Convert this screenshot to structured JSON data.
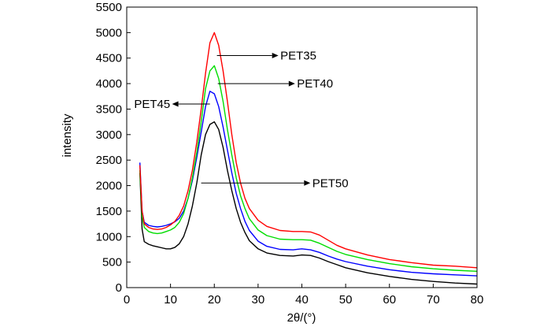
{
  "chart_data": {
    "type": "line",
    "xlabel": "2θ/(°)",
    "ylabel": "intensity",
    "xlim": [
      0,
      80
    ],
    "ylim": [
      0,
      5500
    ],
    "x_ticks": [
      0,
      10,
      20,
      30,
      40,
      50,
      60,
      70,
      80
    ],
    "y_ticks": [
      0,
      500,
      1000,
      1500,
      2000,
      2500,
      3000,
      3500,
      4000,
      4500,
      5000,
      5500
    ],
    "grid": false,
    "legend": "none",
    "annotations": [
      {
        "text": "PET35",
        "series": "PET35",
        "arrow": "right"
      },
      {
        "text": "PET40",
        "series": "PET40",
        "arrow": "right"
      },
      {
        "text": "PET45",
        "series": "PET45",
        "arrow": "left"
      },
      {
        "text": "PET50",
        "series": "PET50",
        "arrow": "right"
      }
    ],
    "x": [
      3,
      3.5,
      4,
      5,
      6,
      7,
      8,
      9,
      10,
      11,
      12,
      13,
      14,
      15,
      16,
      17,
      18,
      19,
      20,
      21,
      22,
      23,
      24,
      25,
      26,
      27,
      28,
      30,
      32,
      35,
      38,
      40,
      42,
      44,
      46,
      48,
      50,
      55,
      60,
      65,
      70,
      75,
      80
    ],
    "series": [
      {
        "name": "PET35",
        "color": "#ff0000",
        "values": [
          2400,
          1500,
          1250,
          1180,
          1150,
          1140,
          1150,
          1180,
          1230,
          1300,
          1420,
          1600,
          1900,
          2300,
          2850,
          3500,
          4200,
          4800,
          5000,
          4750,
          4250,
          3650,
          3000,
          2450,
          2050,
          1750,
          1550,
          1320,
          1200,
          1120,
          1100,
          1100,
          1090,
          1030,
          930,
          830,
          760,
          640,
          550,
          490,
          440,
          420,
          390
        ]
      },
      {
        "name": "PET40",
        "color": "#00dd00",
        "values": [
          2300,
          1400,
          1180,
          1100,
          1070,
          1060,
          1070,
          1100,
          1130,
          1180,
          1280,
          1450,
          1750,
          2150,
          2650,
          3250,
          3900,
          4250,
          4350,
          4100,
          3650,
          3100,
          2600,
          2150,
          1800,
          1550,
          1350,
          1130,
          1020,
          950,
          940,
          940,
          930,
          870,
          790,
          710,
          650,
          550,
          470,
          410,
          370,
          340,
          320
        ]
      },
      {
        "name": "PET45",
        "color": "#0000ff",
        "values": [
          2450,
          1500,
          1280,
          1220,
          1200,
          1190,
          1200,
          1220,
          1250,
          1290,
          1360,
          1500,
          1750,
          2100,
          2550,
          3050,
          3550,
          3850,
          3800,
          3550,
          3150,
          2700,
          2250,
          1850,
          1550,
          1300,
          1120,
          910,
          810,
          750,
          740,
          760,
          740,
          690,
          620,
          560,
          510,
          420,
          350,
          300,
          270,
          250,
          230
        ]
      },
      {
        "name": "PET50",
        "color": "#000000",
        "values": [
          2250,
          1150,
          900,
          850,
          820,
          800,
          780,
          760,
          760,
          790,
          860,
          1000,
          1250,
          1600,
          2050,
          2600,
          3000,
          3200,
          3250,
          3100,
          2750,
          2300,
          1900,
          1550,
          1280,
          1080,
          920,
          760,
          680,
          630,
          620,
          640,
          630,
          580,
          510,
          450,
          390,
          290,
          220,
          160,
          120,
          90,
          70
        ]
      }
    ]
  }
}
